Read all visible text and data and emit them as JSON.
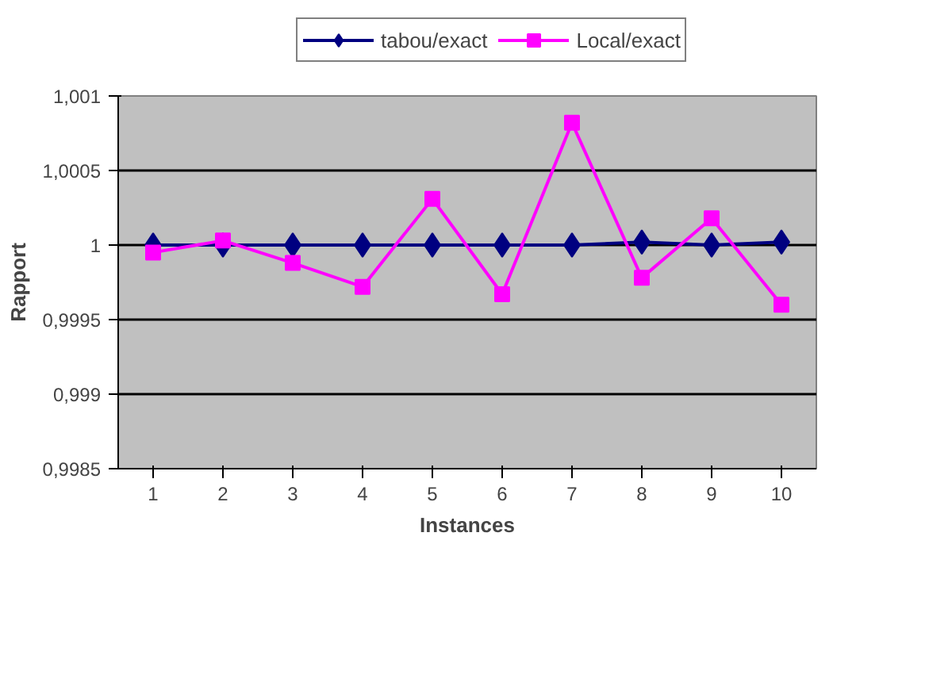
{
  "chart_data": {
    "type": "line",
    "xlabel": "Instances",
    "ylabel": "Rapport",
    "categories": [
      "1",
      "2",
      "3",
      "4",
      "5",
      "6",
      "7",
      "8",
      "9",
      "10"
    ],
    "series": [
      {
        "name": "tabou/exact",
        "color": "#000080",
        "marker": "diamond",
        "values": [
          1,
          1,
          1,
          1,
          1,
          1,
          1,
          1.00002,
          1,
          1.00002
        ]
      },
      {
        "name": "Local/exact",
        "color": "#ff00ff",
        "marker": "square",
        "values": [
          0.99995,
          1.00003,
          0.99988,
          0.99972,
          1.00031,
          0.99967,
          1.00082,
          0.99978,
          1.00018,
          0.9996
        ]
      }
    ],
    "ylim": [
      0.9985,
      1.001
    ],
    "yticks": [
      {
        "value": 0.9985,
        "label": "0,9985"
      },
      {
        "value": 0.999,
        "label": "0,999"
      },
      {
        "value": 0.9995,
        "label": "0,9995"
      },
      {
        "value": 1,
        "label": "1"
      },
      {
        "value": 1.0005,
        "label": "1,0005"
      },
      {
        "value": 1.001,
        "label": "1,001"
      }
    ],
    "grid": "y",
    "legend": "top",
    "line_style": "solid"
  }
}
